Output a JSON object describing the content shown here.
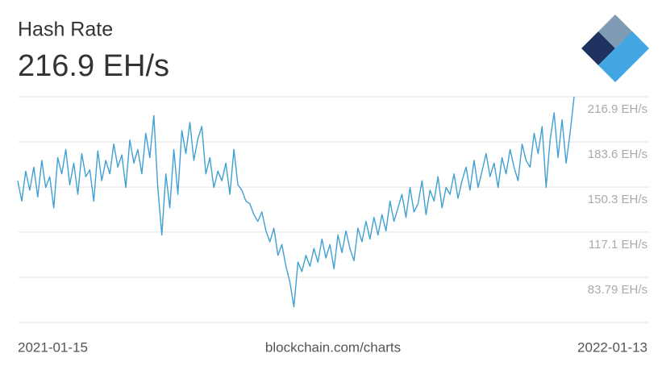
{
  "chart_data": {
    "type": "line",
    "title": "Hash Rate",
    "current_value": "216.9 EH/s",
    "source": "blockchain.com/charts",
    "xlim": [
      "2021-01-15",
      "2022-01-13"
    ],
    "ylim": [
      50.5,
      216.9
    ],
    "yticks": [
      {
        "value": 216.9,
        "label": "216.9 EH/s"
      },
      {
        "value": 183.6,
        "label": "183.6 EH/s"
      },
      {
        "value": 150.3,
        "label": "150.3 EH/s"
      },
      {
        "value": 117.1,
        "label": "117.1 EH/s"
      },
      {
        "value": 83.79,
        "label": "83.79 EH/s"
      }
    ],
    "grid": true,
    "color": "#3fa0d3",
    "values": [
      155,
      140,
      162,
      148,
      165,
      143,
      170,
      150,
      158,
      135,
      172,
      160,
      178,
      152,
      168,
      145,
      175,
      158,
      163,
      140,
      177,
      155,
      170,
      160,
      182,
      165,
      174,
      150,
      185,
      168,
      178,
      160,
      190,
      172,
      203,
      150,
      115,
      160,
      135,
      178,
      145,
      192,
      175,
      198,
      170,
      186,
      195,
      160,
      172,
      150,
      162,
      155,
      168,
      145,
      178,
      152,
      148,
      140,
      138,
      130,
      125,
      132,
      118,
      110,
      120,
      100,
      108,
      92,
      80,
      62,
      95,
      88,
      100,
      92,
      105,
      95,
      112,
      98,
      108,
      90,
      115,
      102,
      118,
      105,
      96,
      120,
      110,
      125,
      112,
      128,
      115,
      130,
      118,
      140,
      125,
      135,
      145,
      128,
      150,
      132,
      138,
      155,
      130,
      148,
      140,
      158,
      135,
      150,
      145,
      160,
      142,
      155,
      165,
      148,
      170,
      150,
      162,
      175,
      158,
      168,
      150,
      172,
      160,
      178,
      165,
      155,
      182,
      170,
      165,
      190,
      175,
      195,
      150,
      185,
      205,
      172,
      200,
      168,
      190,
      216.9
    ]
  }
}
